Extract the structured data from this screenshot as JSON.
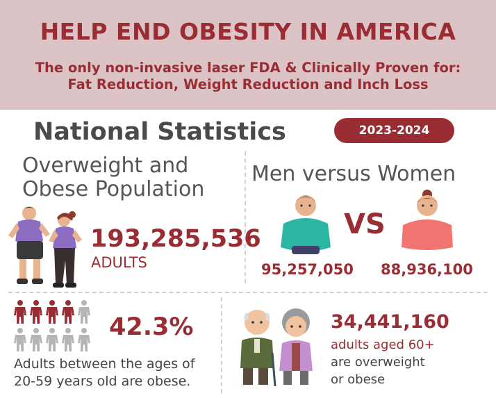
{
  "header": {
    "title": "HELP END OBESITY IN AMERICA",
    "subtitle_line1": "The only non-invasive laser FDA & Clinically Proven for:",
    "subtitle_line2": "Fat Reduction, Weight Reduction and Inch Loss"
  },
  "section": {
    "title": "National Statistics",
    "year_badge": "2023-2024"
  },
  "overweight": {
    "title_line1": "Overweight and",
    "title_line2": "Obese Population",
    "count": "193,285,536",
    "unit": "ADULTS"
  },
  "gender": {
    "title": "Men versus Women",
    "vs_label": "VS",
    "men_count": "95,257,050",
    "women_count": "88,936,100"
  },
  "age_stat": {
    "percent": "42.3%",
    "caption_line1": "Adults between the ages of",
    "caption_line2": "20-59 years old are obese.",
    "icon_grid": {
      "total": 10,
      "highlighted": 4
    }
  },
  "seniors": {
    "count": "34,441,160",
    "caption_line1": "adults aged 60+",
    "caption_line2": "are overweight",
    "caption_line3": "or obese"
  },
  "colors": {
    "accent": "#9a2d33",
    "header_bg": "#dcc4c6",
    "text_gray": "#4a4a4a",
    "icon_gray": "#b5b5b5"
  }
}
